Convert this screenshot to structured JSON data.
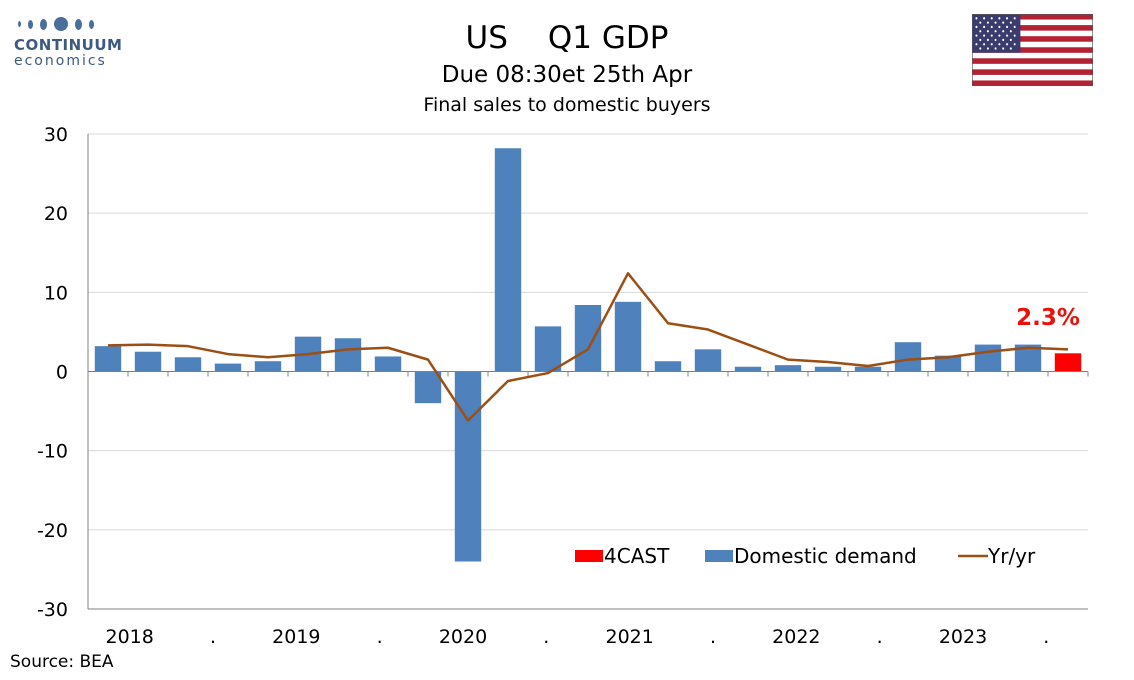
{
  "logo": {
    "name": "CONTINUUM",
    "sub": "economics"
  },
  "header": {
    "title_country": "US",
    "title_indicator": "Q1 GDP",
    "subtitle": "Due 08:30et 25th Apr",
    "subtitle2": "Final sales to domestic buyers"
  },
  "flag": "us-flag",
  "footer": {
    "source": "Source: BEA"
  },
  "colors": {
    "bar": "#4f81bd",
    "forecast": "#ff0000",
    "line": "#9c4f14",
    "grid": "#d9d9d9",
    "axis": "#808080",
    "annotation": "#e8120c"
  },
  "chart_data": {
    "type": "bar",
    "ylim": [
      -30,
      30
    ],
    "yticks": [
      -30,
      -20,
      -10,
      0,
      10,
      20,
      30
    ],
    "grid": true,
    "legend_position": "bottom-right",
    "x_labels": [
      "2018",
      ".",
      "2019",
      ".",
      "2020",
      ".",
      "2021",
      ".",
      "2022",
      ".",
      "2023",
      "."
    ],
    "categories": [
      "2018Q1",
      "2018Q2",
      "2018Q3",
      "2018Q4",
      "2019Q1",
      "2019Q2",
      "2019Q3",
      "2019Q4",
      "2020Q1",
      "2020Q2",
      "2020Q3",
      "2020Q4",
      "2021Q1",
      "2021Q2",
      "2021Q3",
      "2021Q4",
      "2022Q1",
      "2022Q2",
      "2022Q3",
      "2022Q4",
      "2023Q1",
      "2023Q2",
      "2023Q3",
      "2023Q4",
      "2024Q1"
    ],
    "series": [
      {
        "name": "Domestic demand",
        "type": "bar",
        "values": [
          3.2,
          2.5,
          1.8,
          1.0,
          1.3,
          4.4,
          4.2,
          1.9,
          -4.0,
          -24.0,
          28.2,
          5.7,
          8.4,
          8.8,
          1.3,
          2.8,
          0.6,
          0.8,
          0.6,
          0.6,
          3.7,
          2.0,
          3.4,
          3.4,
          null
        ]
      },
      {
        "name": "4CAST",
        "type": "bar",
        "values": [
          null,
          null,
          null,
          null,
          null,
          null,
          null,
          null,
          null,
          null,
          null,
          null,
          null,
          null,
          null,
          null,
          null,
          null,
          null,
          null,
          null,
          null,
          null,
          null,
          2.3
        ]
      },
      {
        "name": "Yr/yr",
        "type": "line",
        "values": [
          3.3,
          3.4,
          3.2,
          2.2,
          1.8,
          2.2,
          2.8,
          3.0,
          1.5,
          -6.2,
          -1.2,
          -0.2,
          2.8,
          12.4,
          6.1,
          5.3,
          3.4,
          1.5,
          1.2,
          0.7,
          1.5,
          1.8,
          2.5,
          3.0,
          2.8
        ]
      }
    ],
    "annotations": [
      {
        "text": "2.3%",
        "category": "2024Q1"
      }
    ]
  }
}
